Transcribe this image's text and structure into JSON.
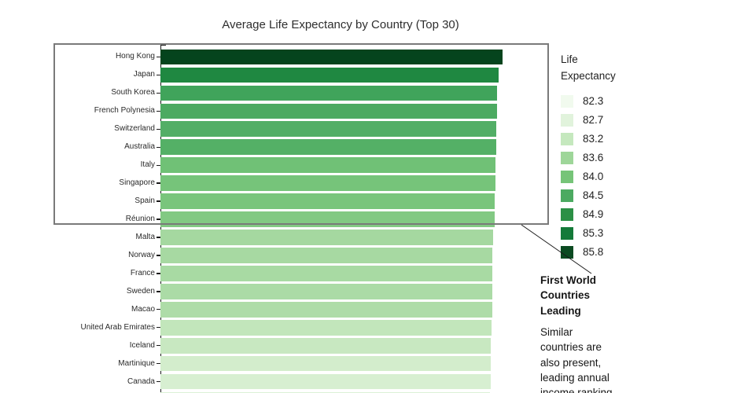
{
  "title": "Average Life Expectancy by Country (Top 30)",
  "chart_data": {
    "type": "bar",
    "orientation": "horizontal",
    "title": "Average Life Expectancy by Country (Top 30)",
    "xlabel": "",
    "ylabel": "",
    "x_axis_ticks_visible": false,
    "xlim": [
      0,
      85.8
    ],
    "visible_rows": 19,
    "total_rows_implied": 30,
    "categories": [
      "Hong Kong",
      "Japan",
      "South Korea",
      "French Polynesia",
      "Switzerland",
      "Australia",
      "Italy",
      "Singapore",
      "Spain",
      "Réunion",
      "Malta",
      "Norway",
      "France",
      "Sweden",
      "Macao",
      "United Arab Emirates",
      "Iceland",
      "Martinique",
      "Canada"
    ],
    "values": [
      85.8,
      85.0,
      84.6,
      84.5,
      84.4,
      84.4,
      84.1,
      84.1,
      84.0,
      83.9,
      83.5,
      83.4,
      83.4,
      83.4,
      83.3,
      83.1,
      83.0,
      82.9,
      82.9
    ],
    "bar_colors": [
      "#05441d",
      "#1f8841",
      "#40a45b",
      "#4caa61",
      "#52ae66",
      "#54b066",
      "#70c176",
      "#76c47a",
      "#79c57c",
      "#82c983",
      "#a5d8a0",
      "#a7d9a2",
      "#a8daa3",
      "#abdba6",
      "#aedca8",
      "#c2e6bb",
      "#c8e8c1",
      "#d3edcc",
      "#d7efd1"
    ],
    "partial_next_bar": true,
    "partial_next_bar_color": "#dcf1d7",
    "colormap": "Greens"
  },
  "legend": {
    "title_lines": [
      "Life",
      "Expectancy"
    ],
    "entries": [
      {
        "label": "82.3",
        "color": "#f1faee"
      },
      {
        "label": "82.7",
        "color": "#e1f3dc"
      },
      {
        "label": "83.2",
        "color": "#c5e8be"
      },
      {
        "label": "83.6",
        "color": "#9ed699"
      },
      {
        "label": "84.0",
        "color": "#76c478"
      },
      {
        "label": "84.5",
        "color": "#4caa61"
      },
      {
        "label": "84.9",
        "color": "#2b9045"
      },
      {
        "label": "85.3",
        "color": "#147a39"
      },
      {
        "label": "85.8",
        "color": "#0b4a21"
      }
    ]
  },
  "annotation": {
    "box_encloses": [
      "Hong Kong",
      "Japan",
      "South Korea",
      "French Polynesia",
      "Switzerland",
      "Australia",
      "Italy",
      "Singapore",
      "Spain",
      "Réunion"
    ],
    "box_border_color": "#7a7a7a",
    "heading_lines": [
      "First World",
      "Countries",
      "Leading"
    ],
    "body_lines": [
      "Similar",
      "countries are",
      "also present,",
      "leading annual",
      "income ranking"
    ]
  }
}
